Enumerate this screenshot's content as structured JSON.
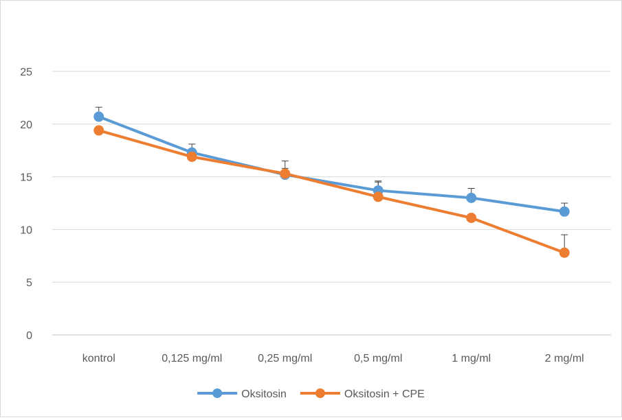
{
  "chart_data": {
    "type": "line",
    "title": "",
    "xlabel": "",
    "ylabel": "",
    "categories": [
      "kontrol",
      "0,125 mg/ml",
      "0,25 mg/ml",
      "0,5 mg/ml",
      "1 mg/ml",
      "2 mg/ml"
    ],
    "ylim": [
      0,
      25
    ],
    "yticks": [
      0,
      5,
      10,
      15,
      20,
      25
    ],
    "grid": true,
    "legend_position": "bottom",
    "series": [
      {
        "name": "Oksitosin",
        "color": "#5b9bd5",
        "values": [
          20.7,
          17.3,
          15.2,
          13.7,
          13.0,
          11.7
        ],
        "errors": [
          0.9,
          0.8,
          0.6,
          0.9,
          0.9,
          0.8
        ]
      },
      {
        "name": "Oksitosin + CPE",
        "color": "#ed7d31",
        "values": [
          19.4,
          16.9,
          15.3,
          13.1,
          11.1,
          7.8
        ],
        "errors": [
          0.0,
          0.6,
          1.2,
          1.4,
          0.0,
          1.7
        ]
      }
    ]
  }
}
